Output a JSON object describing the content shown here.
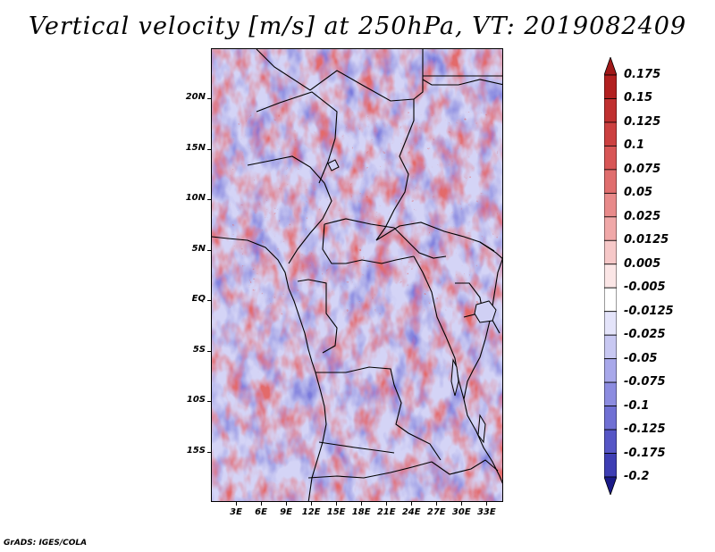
{
  "title": "Vertical velocity [m/s] at 250hPa, VT: 2019082409",
  "map": {
    "region": "Central Africa",
    "lat_range_deg": [
      -20,
      25
    ],
    "lon_range_deg": [
      0,
      35
    ],
    "lat_ticks": [
      {
        "label": "20N",
        "value": 20
      },
      {
        "label": "15N",
        "value": 15
      },
      {
        "label": "10N",
        "value": 10
      },
      {
        "label": "5N",
        "value": 5
      },
      {
        "label": "EQ",
        "value": 0
      },
      {
        "label": "5S",
        "value": -5
      },
      {
        "label": "10S",
        "value": -10
      },
      {
        "label": "15S",
        "value": -15
      }
    ],
    "lon_ticks": [
      {
        "label": "3E",
        "value": 3
      },
      {
        "label": "6E",
        "value": 6
      },
      {
        "label": "9E",
        "value": 9
      },
      {
        "label": "12E",
        "value": 12
      },
      {
        "label": "15E",
        "value": 15
      },
      {
        "label": "18E",
        "value": 18
      },
      {
        "label": "21E",
        "value": 21
      },
      {
        "label": "24E",
        "value": 24
      },
      {
        "label": "27E",
        "value": 27
      },
      {
        "label": "30E",
        "value": 30
      },
      {
        "label": "33E",
        "value": 33
      }
    ]
  },
  "colorbar": {
    "levels": [
      {
        "label": "0.175",
        "color": "#b22020"
      },
      {
        "label": "0.15",
        "color": "#c03030"
      },
      {
        "label": "0.125",
        "color": "#cc4040"
      },
      {
        "label": "0.1",
        "color": "#d85656"
      },
      {
        "label": "0.075",
        "color": "#e06e6e"
      },
      {
        "label": "0.05",
        "color": "#e88a8a"
      },
      {
        "label": "0.025",
        "color": "#f0a8a8"
      },
      {
        "label": "0.0125",
        "color": "#f6c8c8"
      },
      {
        "label": "0.005",
        "color": "#fbe6e6"
      },
      {
        "label": "-0.005",
        "color": "#ffffff"
      },
      {
        "label": "-0.0125",
        "color": "#e4e4fa"
      },
      {
        "label": "-0.025",
        "color": "#c8c8f2"
      },
      {
        "label": "-0.05",
        "color": "#a8a8ea"
      },
      {
        "label": "-0.075",
        "color": "#8c8ce0"
      },
      {
        "label": "-0.1",
        "color": "#7070d4"
      },
      {
        "label": "-0.125",
        "color": "#5656c6"
      },
      {
        "label": "-0.175",
        "color": "#3e3eb4"
      },
      {
        "label": "-0.2",
        "color": "#2a2a9c"
      }
    ],
    "top_arrow_color": "#a01818",
    "bottom_arrow_color": "#1a1a88"
  },
  "footer": "GrADS: IGES/COLA"
}
